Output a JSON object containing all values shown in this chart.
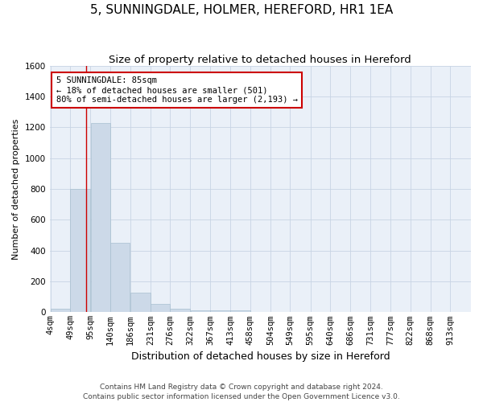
{
  "title": "5, SUNNINGDALE, HOLMER, HEREFORD, HR1 1EA",
  "subtitle": "Size of property relative to detached houses in Hereford",
  "xlabel": "Distribution of detached houses by size in Hereford",
  "ylabel": "Number of detached properties",
  "footer_line1": "Contains HM Land Registry data © Crown copyright and database right 2024.",
  "footer_line2": "Contains public sector information licensed under the Open Government Licence v3.0.",
  "bin_labels": [
    "4sqm",
    "49sqm",
    "95sqm",
    "140sqm",
    "186sqm",
    "231sqm",
    "276sqm",
    "322sqm",
    "367sqm",
    "413sqm",
    "458sqm",
    "504sqm",
    "549sqm",
    "595sqm",
    "640sqm",
    "686sqm",
    "731sqm",
    "777sqm",
    "822sqm",
    "868sqm",
    "913sqm"
  ],
  "bin_edges": [
    4,
    49,
    95,
    140,
    186,
    231,
    276,
    322,
    367,
    413,
    458,
    504,
    549,
    595,
    640,
    686,
    731,
    777,
    822,
    868,
    913
  ],
  "bin_width": 45,
  "bar_heights": [
    25,
    800,
    1230,
    450,
    125,
    55,
    25,
    15,
    10,
    10,
    0,
    0,
    0,
    0,
    0,
    0,
    0,
    0,
    0,
    0,
    0
  ],
  "bar_color": "#ccd9e8",
  "bar_edge_color": "#a8bfd0",
  "grid_color": "#c8d4e4",
  "property_size": 85,
  "annotation_line1": "5 SUNNINGDALE: 85sqm",
  "annotation_line2": "← 18% of detached houses are smaller (501)",
  "annotation_line3": "80% of semi-detached houses are larger (2,193) →",
  "vline_color": "#cc0000",
  "annotation_box_edge_color": "#cc0000",
  "ylim": [
    0,
    1600
  ],
  "yticks": [
    0,
    200,
    400,
    600,
    800,
    1000,
    1200,
    1400,
    1600
  ],
  "title_fontsize": 11,
  "subtitle_fontsize": 9.5,
  "xlabel_fontsize": 9,
  "ylabel_fontsize": 8,
  "tick_fontsize": 7.5,
  "annotation_fontsize": 7.5,
  "footer_fontsize": 6.5,
  "background_color": "#eaf0f8"
}
